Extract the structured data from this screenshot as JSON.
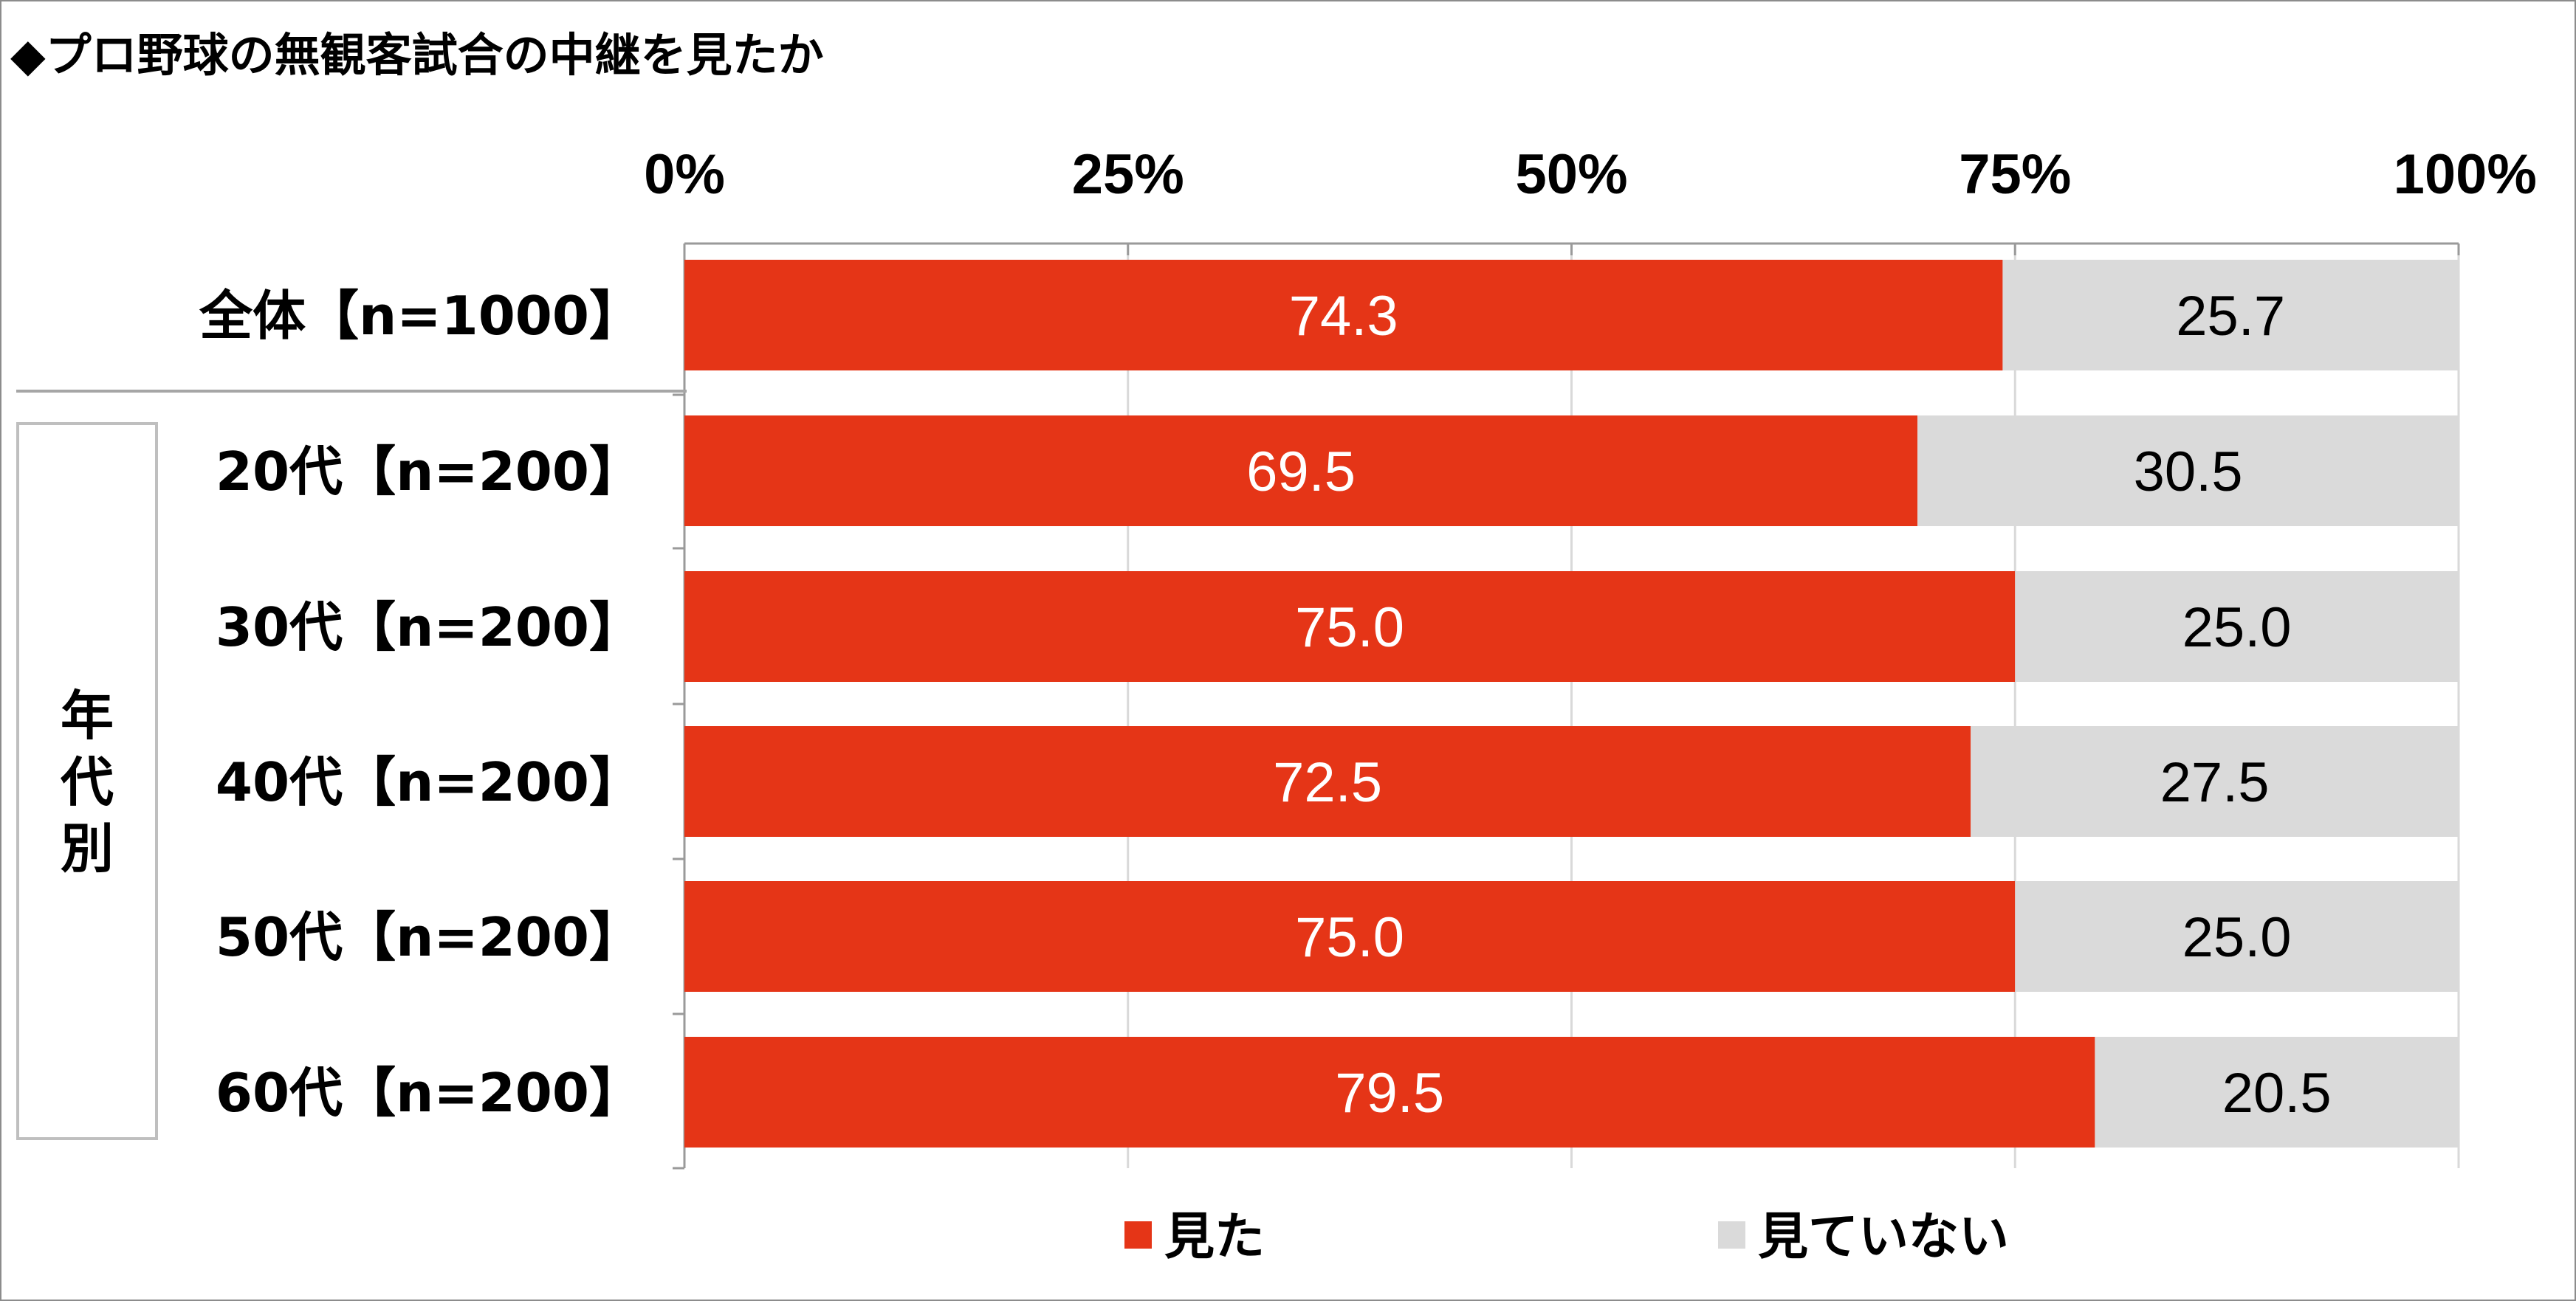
{
  "title": "◆プロ野球の無観客試合の中継を見たか",
  "chart_data": {
    "type": "bar",
    "orientation": "horizontal",
    "stacked": true,
    "title": "◆プロ野球の無観客試合の中継を見たか",
    "x_ticks": [
      "0%",
      "25%",
      "50%",
      "75%",
      "100%"
    ],
    "xlim": [
      0,
      100
    ],
    "categories": [
      "全体【n=1000】",
      "20代【n=200】",
      "30代【n=200】",
      "40代【n=200】",
      "50代【n=200】",
      "60代【n=200】"
    ],
    "group_label": "年代別",
    "series": [
      {
        "name": "見た",
        "color": "#e53517",
        "label_color": "#ffffff",
        "values": [
          74.3,
          69.5,
          75.0,
          72.5,
          75.0,
          79.5
        ]
      },
      {
        "name": "見ていない",
        "color": "#dadada",
        "label_color": "#000000",
        "values": [
          25.7,
          30.5,
          25.0,
          27.5,
          25.0,
          20.5
        ]
      }
    ],
    "grid": true,
    "legend_position": "bottom"
  }
}
